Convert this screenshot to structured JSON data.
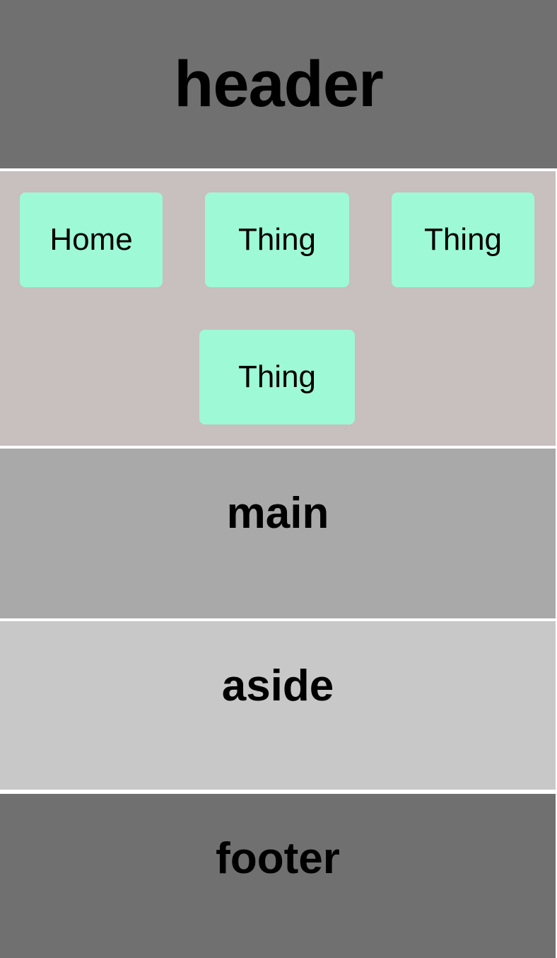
{
  "header": {
    "title": "header"
  },
  "nav": {
    "items": [
      {
        "label": "Home"
      },
      {
        "label": "Thing"
      },
      {
        "label": "Thing"
      },
      {
        "label": "Thing"
      }
    ]
  },
  "main": {
    "title": "main"
  },
  "aside": {
    "title": "aside"
  },
  "footer": {
    "title": "footer"
  },
  "colors": {
    "header_bg": "#707070",
    "nav_bg": "#c8bfbf",
    "nav_button_bg": "#9ef9d6",
    "main_bg": "#a9a9a9",
    "aside_bg": "#c8c8c8",
    "footer_bg": "#707070"
  }
}
